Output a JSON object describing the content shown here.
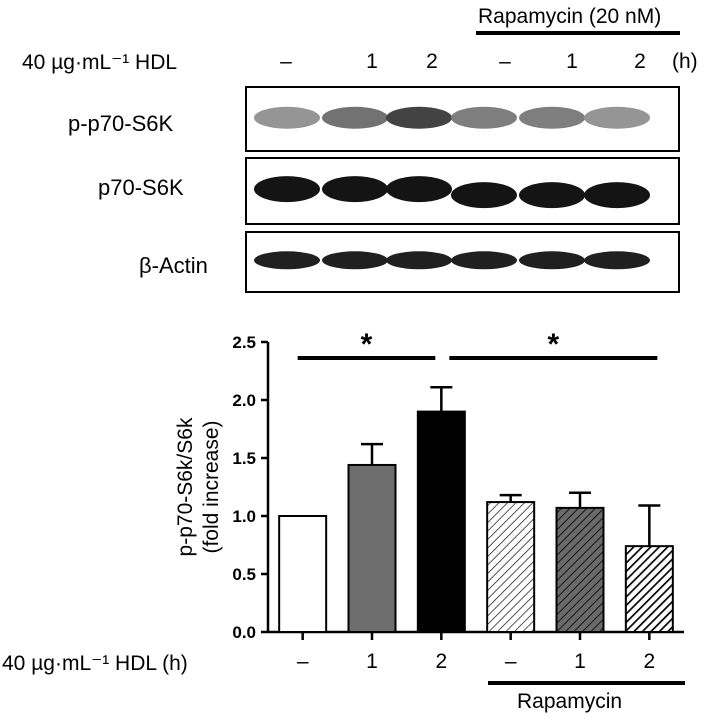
{
  "blot": {
    "rapamycin_header": "Rapamycin (20 nM)",
    "hdl_row_label": "40 µg·mL⁻¹ HDL",
    "lanes": [
      "–",
      "1",
      "2",
      "–",
      "1",
      "2"
    ],
    "unit": "(h)",
    "panels": [
      {
        "label": "p-p70-S6K",
        "intensity": [
          0.45,
          0.6,
          0.8,
          0.55,
          0.55,
          0.45
        ]
      },
      {
        "label": "p70-S6K",
        "intensity": [
          1,
          1,
          1,
          1,
          1,
          1
        ]
      },
      {
        "label": "β-Actin",
        "intensity": [
          0.95,
          0.95,
          0.95,
          0.95,
          0.95,
          0.95
        ]
      }
    ]
  },
  "chart_data": {
    "type": "bar",
    "categories": [
      "–",
      "1",
      "2",
      "–",
      "1",
      "2"
    ],
    "values": [
      1.0,
      1.44,
      1.9,
      1.12,
      1.07,
      0.74
    ],
    "errors": [
      0.0,
      0.18,
      0.21,
      0.06,
      0.13,
      0.35
    ],
    "fills": [
      "white",
      "gray",
      "black",
      "hatch-light",
      "hatch-gray",
      "hatch-black"
    ],
    "ylabel": "p-p70-S6k/S6k\n(fold increase)",
    "xlabel": "40 µg·mL⁻¹ HDL (h)",
    "ylim": [
      0,
      2.5
    ],
    "yticks": [
      "0.0",
      "0.5",
      "1.0",
      "1.5",
      "2.0",
      "2.5"
    ],
    "group_label": "Rapamycin",
    "significance": [
      {
        "from": 0,
        "to": 2,
        "label": "*"
      },
      {
        "from": 2,
        "to": 5,
        "label": "*"
      }
    ],
    "grid": false,
    "legend": "none"
  }
}
